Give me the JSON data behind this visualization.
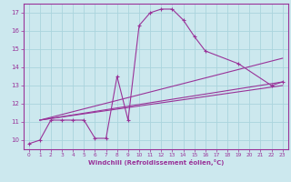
{
  "xlabel": "Windchill (Refroidissement éolien,°C)",
  "bg_color": "#cce8ee",
  "grid_color": "#aad4dd",
  "line_color": "#993399",
  "xlim": [
    -0.5,
    23.5
  ],
  "ylim": [
    9.5,
    17.5
  ],
  "yticks": [
    10,
    11,
    12,
    13,
    14,
    15,
    16,
    17
  ],
  "xticks": [
    0,
    1,
    2,
    3,
    4,
    5,
    6,
    7,
    8,
    9,
    10,
    11,
    12,
    13,
    14,
    15,
    16,
    17,
    18,
    19,
    20,
    21,
    22,
    23
  ],
  "curve1_x": [
    0,
    1,
    2,
    3,
    4,
    5,
    6,
    7,
    8,
    9,
    10,
    11,
    12,
    13,
    14,
    15,
    16,
    19,
    22,
    23
  ],
  "curve1_y": [
    9.8,
    10.0,
    11.1,
    11.1,
    11.1,
    11.1,
    10.1,
    10.1,
    13.5,
    11.1,
    16.3,
    17.0,
    17.2,
    17.2,
    16.6,
    15.7,
    14.9,
    14.2,
    13.0,
    13.2
  ],
  "line2_x": [
    1,
    23
  ],
  "line2_y": [
    11.1,
    13.2
  ],
  "line3_x": [
    1,
    23
  ],
  "line3_y": [
    11.1,
    13.0
  ],
  "line4_x": [
    1,
    23
  ],
  "line4_y": [
    11.1,
    14.5
  ]
}
